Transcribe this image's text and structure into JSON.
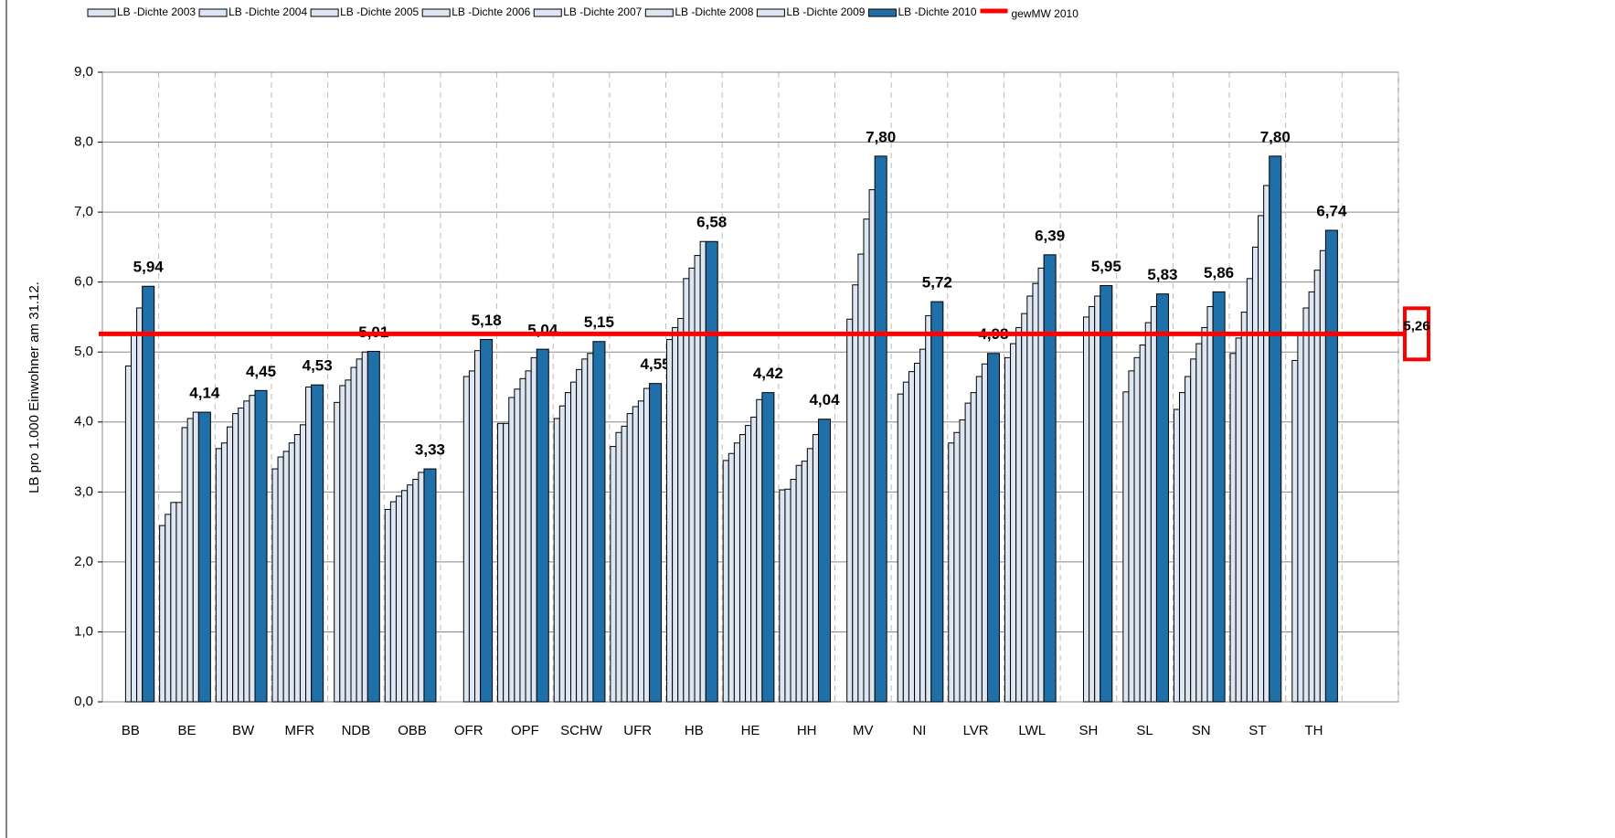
{
  "chart_data": {
    "type": "bar",
    "y_label": "LB pro 1.000 Einwohner am 31.12.",
    "categories": [
      "BB",
      "BE",
      "BW",
      "MFR",
      "NDB",
      "OBB",
      "OFR",
      "OPF",
      "SCHW",
      "UFR",
      "HB",
      "HE",
      "HH",
      "MV",
      "NI",
      "LVR",
      "LWL",
      "SH",
      "SL",
      "SN",
      "ST",
      "TH"
    ],
    "series": [
      {
        "name": "LB -Dichte 2003",
        "color": "#dde6f3",
        "values": [
          null,
          2.52,
          3.62,
          3.33,
          null,
          2.75,
          null,
          3.98,
          4.05,
          3.65,
          5.18,
          3.45,
          3.03,
          null,
          null,
          3.7,
          4.92,
          null,
          null,
          4.18,
          4.98,
          null
        ]
      },
      {
        "name": "LB -Dichte 2004",
        "color": "#dde6f3",
        "values": [
          null,
          2.68,
          3.7,
          3.5,
          4.28,
          2.86,
          null,
          3.98,
          4.23,
          3.85,
          5.35,
          3.55,
          3.04,
          null,
          4.4,
          3.85,
          5.12,
          null,
          4.43,
          4.42,
          5.2,
          4.88
        ]
      },
      {
        "name": "LB -Dichte 2005",
        "color": "#dde6f3",
        "values": [
          null,
          2.85,
          3.93,
          3.58,
          4.52,
          2.94,
          null,
          4.35,
          4.42,
          3.94,
          5.48,
          3.7,
          3.18,
          5.47,
          4.57,
          4.03,
          5.35,
          null,
          4.73,
          4.65,
          5.57,
          5.25
        ]
      },
      {
        "name": "LB -Dichte 2006",
        "color": "#dde6f3",
        "values": [
          null,
          2.85,
          4.12,
          3.7,
          4.6,
          3.02,
          null,
          4.47,
          4.57,
          4.12,
          6.05,
          3.82,
          3.38,
          5.96,
          4.72,
          4.27,
          5.55,
          null,
          4.92,
          4.9,
          6.05,
          5.63
        ]
      },
      {
        "name": "LB -Dichte 2007",
        "color": "#dde6f3",
        "values": [
          4.8,
          3.92,
          4.2,
          3.82,
          4.78,
          3.1,
          4.65,
          4.62,
          4.75,
          4.22,
          6.2,
          3.95,
          3.44,
          6.4,
          4.84,
          4.42,
          5.8,
          5.5,
          5.1,
          5.12,
          6.5,
          5.86
        ]
      },
      {
        "name": "LB -Dichte 2008",
        "color": "#dde6f3",
        "values": [
          5.25,
          4.05,
          4.3,
          3.96,
          4.9,
          3.18,
          4.73,
          4.73,
          4.9,
          4.3,
          6.38,
          4.07,
          3.62,
          6.9,
          5.04,
          4.65,
          5.98,
          5.65,
          5.42,
          5.35,
          6.95,
          6.17
        ]
      },
      {
        "name": "LB -Dichte 2009",
        "color": "#dde6f3",
        "values": [
          5.63,
          4.14,
          4.38,
          4.5,
          5.0,
          3.28,
          5.02,
          4.92,
          4.98,
          4.48,
          6.58,
          4.32,
          3.82,
          7.32,
          5.52,
          4.83,
          6.2,
          5.8,
          5.65,
          5.65,
          7.38,
          6.45
        ]
      },
      {
        "name": "LB -Dichte 2010",
        "color": "#1f70a8",
        "values": [
          5.94,
          4.14,
          4.45,
          4.53,
          5.01,
          3.33,
          5.18,
          5.04,
          5.15,
          4.55,
          6.58,
          4.42,
          4.04,
          7.8,
          5.72,
          4.98,
          6.39,
          5.95,
          5.83,
          5.86,
          7.8,
          6.74
        ],
        "value_labels": [
          "5,94",
          "4,14",
          "4,45",
          "4,53",
          "5,01",
          "3,33",
          "5,18",
          "5,04",
          "5,15",
          "4,55",
          "6,58",
          "4,42",
          "4,04",
          "7,80",
          "5,72",
          "4,98",
          "6,39",
          "5,95",
          "5,83",
          "5,86",
          "7,80",
          "6,74"
        ]
      }
    ],
    "reference_line": {
      "name": "gewMW 2010",
      "color": "#ff0000",
      "value": 5.26,
      "value_label": "5,26"
    },
    "ylim": [
      0,
      9
    ],
    "yticks": [
      {
        "value": 0,
        "label": "0,0"
      },
      {
        "value": 1,
        "label": "1,0"
      },
      {
        "value": 2,
        "label": "2,0"
      },
      {
        "value": 3,
        "label": "3,0"
      },
      {
        "value": 4,
        "label": "4,0"
      },
      {
        "value": 5,
        "label": "5,0"
      },
      {
        "value": 6,
        "label": "6,0"
      },
      {
        "value": 7,
        "label": "7,0"
      },
      {
        "value": 8,
        "label": "8,0"
      },
      {
        "value": 9,
        "label": "9,0"
      }
    ],
    "grid": true,
    "legend": "top"
  }
}
